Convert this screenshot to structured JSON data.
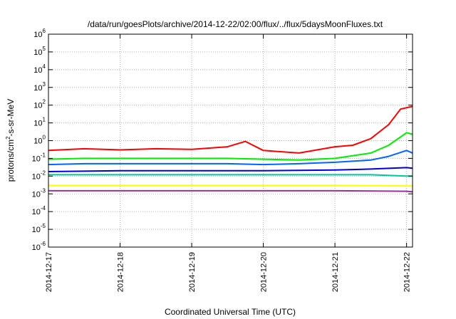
{
  "chart_data": {
    "type": "line",
    "title": "/data/run/goesPlots/archive/2014-12-22/02:00/flux/../flux/5daysMoonFluxes.txt",
    "xlabel": "Coordinated Universal Time (UTC)",
    "ylabel_parts": {
      "pre": "protons/cm",
      "sup": "2",
      "post": "-s-sr-MeV"
    },
    "y_scale": "log",
    "ylim": [
      1e-06,
      1000000.0
    ],
    "y_ticks": [
      {
        "base": "10",
        "exp": "-6",
        "value": 1e-06
      },
      {
        "base": "10",
        "exp": "-5",
        "value": 1e-05
      },
      {
        "base": "10",
        "exp": "-4",
        "value": 0.0001
      },
      {
        "base": "10",
        "exp": "-3",
        "value": 0.001
      },
      {
        "base": "10",
        "exp": "-2",
        "value": 0.01
      },
      {
        "base": "10",
        "exp": "-1",
        "value": 0.1
      },
      {
        "base": "10",
        "exp": "0",
        "value": 1
      },
      {
        "base": "10",
        "exp": "1",
        "value": 10
      },
      {
        "base": "10",
        "exp": "2",
        "value": 100
      },
      {
        "base": "10",
        "exp": "3",
        "value": 1000
      },
      {
        "base": "10",
        "exp": "4",
        "value": 10000
      },
      {
        "base": "10",
        "exp": "5",
        "value": 100000
      },
      {
        "base": "10",
        "exp": "6",
        "value": 1000000
      }
    ],
    "x_ticks": [
      "2014-12-17",
      "2014-12-18",
      "2014-12-19",
      "2014-12-20",
      "2014-12-21",
      "2014-12-22"
    ],
    "xlim": [
      "2014-12-17 00:00",
      "2014-12-22 02:00"
    ],
    "grid": true,
    "legend": "none",
    "series": [
      {
        "color": "#ff0000",
        "x": [
          "2014-12-17 00:00",
          "2014-12-17 12:00",
          "2014-12-18 00:00",
          "2014-12-18 12:00",
          "2014-12-19 00:00",
          "2014-12-19 12:00",
          "2014-12-19 18:00",
          "2014-12-20 00:00",
          "2014-12-20 12:00",
          "2014-12-21 00:00",
          "2014-12-21 06:00",
          "2014-12-21 12:00",
          "2014-12-21 18:00",
          "2014-12-21 22:00",
          "2014-12-22 02:00"
        ],
        "values": [
          0.28,
          0.35,
          0.3,
          0.35,
          0.32,
          0.45,
          0.9,
          0.28,
          0.2,
          0.45,
          0.55,
          1.3,
          8,
          60,
          85
        ]
      },
      {
        "color": "#00ee00",
        "x": [
          "2014-12-17 00:00",
          "2014-12-17 12:00",
          "2014-12-18 00:00",
          "2014-12-18 12:00",
          "2014-12-19 00:00",
          "2014-12-19 12:00",
          "2014-12-20 00:00",
          "2014-12-20 12:00",
          "2014-12-21 00:00",
          "2014-12-21 12:00",
          "2014-12-21 18:00",
          "2014-12-22 00:00",
          "2014-12-22 02:00"
        ],
        "values": [
          0.09,
          0.1,
          0.1,
          0.1,
          0.1,
          0.1,
          0.09,
          0.08,
          0.1,
          0.2,
          0.55,
          2.8,
          2.3
        ]
      },
      {
        "color": "#0066ff",
        "x": [
          "2014-12-17 00:00",
          "2014-12-17 12:00",
          "2014-12-18 00:00",
          "2014-12-18 12:00",
          "2014-12-19 00:00",
          "2014-12-19 12:00",
          "2014-12-20 00:00",
          "2014-12-20 12:00",
          "2014-12-21 00:00",
          "2014-12-21 12:00",
          "2014-12-21 18:00",
          "2014-12-22 00:00",
          "2014-12-22 02:00"
        ],
        "values": [
          0.045,
          0.05,
          0.05,
          0.05,
          0.05,
          0.05,
          0.045,
          0.05,
          0.06,
          0.08,
          0.13,
          0.28,
          0.2
        ]
      },
      {
        "color": "#00c8a0",
        "x": [
          "2014-12-17 00:00",
          "2014-12-18 00:00",
          "2014-12-19 00:00",
          "2014-12-20 00:00",
          "2014-12-21 00:00",
          "2014-12-21 12:00",
          "2014-12-22 00:00",
          "2014-12-22 02:00"
        ],
        "values": [
          0.012,
          0.012,
          0.012,
          0.012,
          0.012,
          0.012,
          0.01,
          0.01
        ]
      },
      {
        "color": "#0000dd",
        "x": [
          "2014-12-17 00:00",
          "2014-12-18 00:00",
          "2014-12-19 00:00",
          "2014-12-20 00:00",
          "2014-12-21 00:00",
          "2014-12-21 12:00",
          "2014-12-22 00:00",
          "2014-12-22 02:00"
        ],
        "values": [
          0.018,
          0.02,
          0.02,
          0.02,
          0.022,
          0.025,
          0.03,
          0.028
        ]
      },
      {
        "color": "#ffff00",
        "x": [
          "2014-12-17 00:00",
          "2014-12-18 00:00",
          "2014-12-19 00:00",
          "2014-12-20 00:00",
          "2014-12-21 00:00",
          "2014-12-22 00:00",
          "2014-12-22 02:00"
        ],
        "values": [
          0.003,
          0.003,
          0.003,
          0.003,
          0.003,
          0.0028,
          0.0028
        ]
      },
      {
        "color": "#993399",
        "x": [
          "2014-12-17 00:00",
          "2014-12-18 00:00",
          "2014-12-19 00:00",
          "2014-12-20 00:00",
          "2014-12-21 00:00",
          "2014-12-22 00:00",
          "2014-12-22 02:00"
        ],
        "values": [
          0.0015,
          0.0015,
          0.0015,
          0.0015,
          0.0015,
          0.0014,
          0.0013
        ]
      }
    ]
  }
}
